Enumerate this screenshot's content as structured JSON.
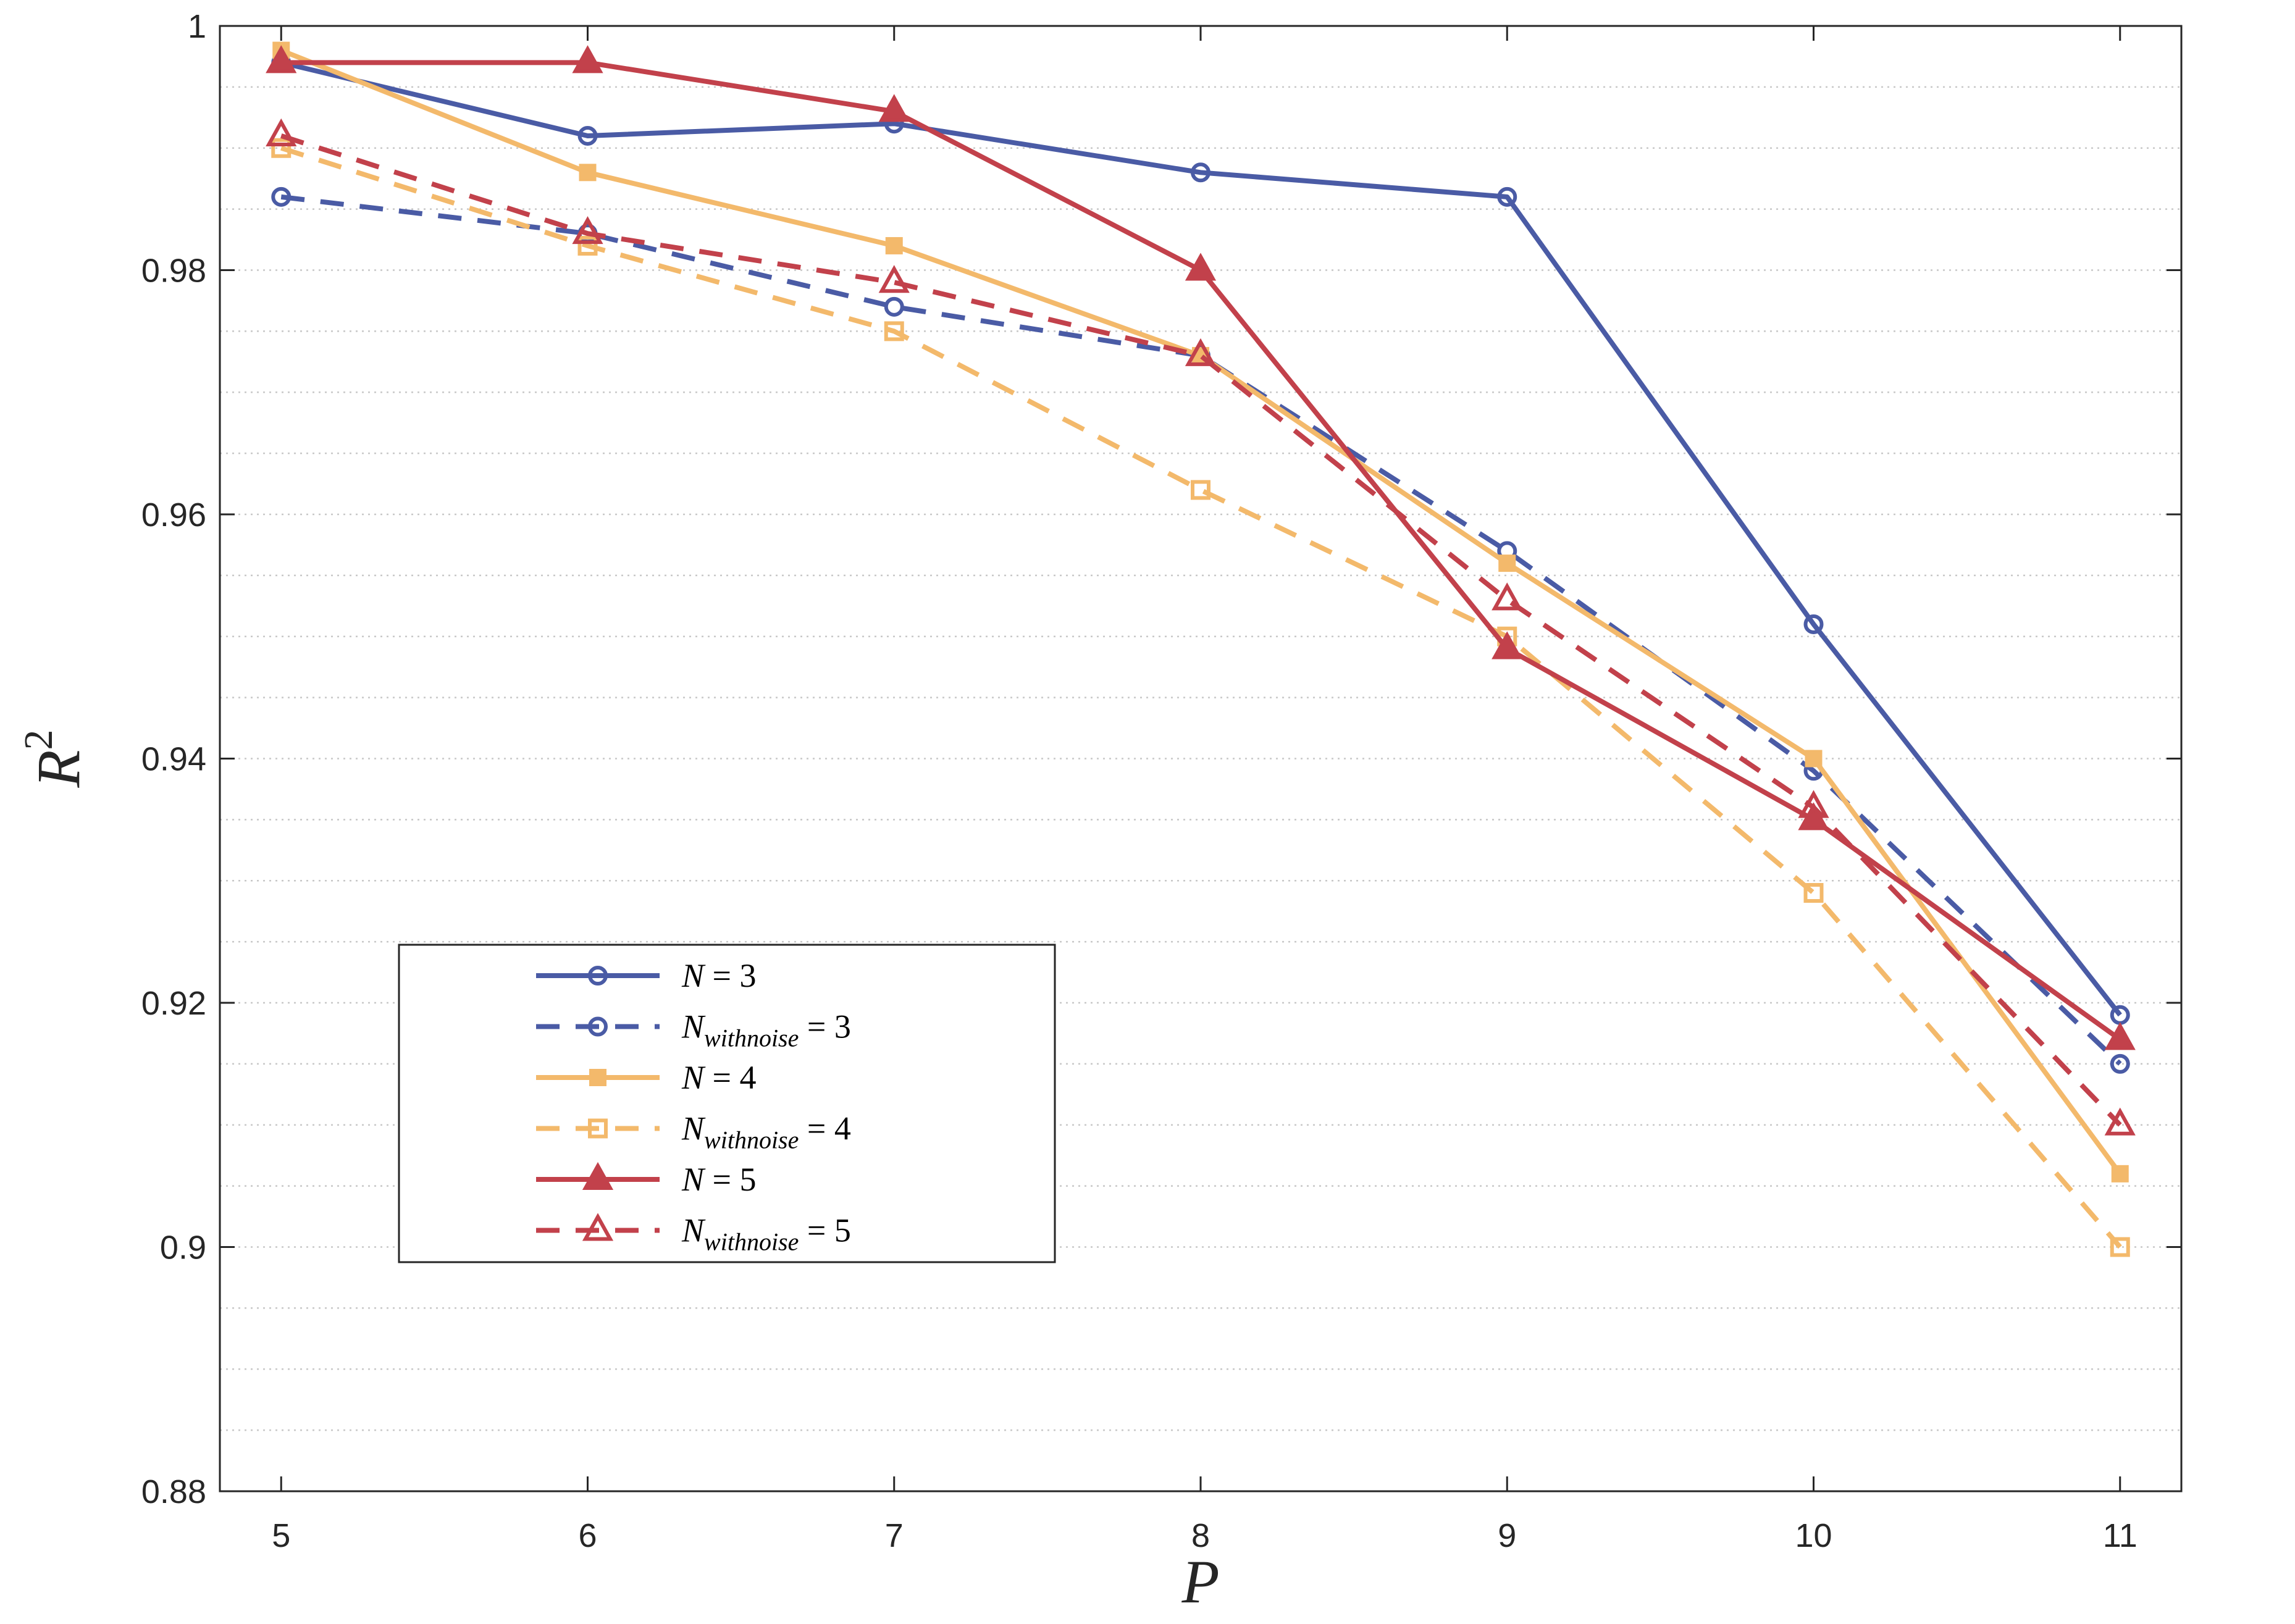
{
  "chart_data": {
    "type": "line",
    "xlabel": "P",
    "ylabel": "R",
    "ylabel_superscript": "2",
    "xlim": [
      4.8,
      11.2
    ],
    "ylim": [
      0.88,
      1.0
    ],
    "x": [
      5,
      6,
      7,
      8,
      9,
      10,
      11
    ],
    "xticks": [
      "5",
      "6",
      "7",
      "8",
      "9",
      "10",
      "11"
    ],
    "yticks": [
      "0.88",
      "0.9",
      "0.92",
      "0.94",
      "0.96",
      "0.98",
      "1"
    ],
    "ytick_values": [
      0.88,
      0.9,
      0.92,
      0.94,
      0.96,
      0.98,
      1.0
    ],
    "grid": "horizontal-minor-dotted",
    "legend_position": "lower-left",
    "series": [
      {
        "name": "N = 3",
        "sub": "",
        "values": [
          0.997,
          0.991,
          0.992,
          0.988,
          0.986,
          0.951,
          0.919
        ],
        "color": "#4a5ba5",
        "dash": false,
        "marker": "circle"
      },
      {
        "name": "N = 3",
        "sub": "withnoise",
        "values": [
          0.986,
          0.983,
          0.977,
          0.973,
          0.957,
          0.939,
          0.915
        ],
        "color": "#4a5ba5",
        "dash": true,
        "marker": "circle"
      },
      {
        "name": "N = 4",
        "sub": "",
        "values": [
          0.998,
          0.988,
          0.982,
          0.973,
          0.956,
          0.94,
          0.906
        ],
        "color": "#f3b96b",
        "dash": false,
        "marker": "square"
      },
      {
        "name": "N = 4",
        "sub": "withnoise",
        "values": [
          0.99,
          0.982,
          0.975,
          0.962,
          0.95,
          0.929,
          0.9
        ],
        "color": "#f3b96b",
        "dash": true,
        "marker": "square"
      },
      {
        "name": "N = 5",
        "sub": "",
        "values": [
          0.997,
          0.997,
          0.993,
          0.98,
          0.949,
          0.935,
          0.917
        ],
        "color": "#c2414b",
        "dash": false,
        "marker": "triangle"
      },
      {
        "name": "N = 5",
        "sub": "withnoise",
        "values": [
          0.991,
          0.983,
          0.979,
          0.973,
          0.953,
          0.936,
          0.91
        ],
        "color": "#c2414b",
        "dash": true,
        "marker": "triangle"
      }
    ],
    "legend": [
      {
        "main": "N",
        "sub": "",
        "eq": " = 3"
      },
      {
        "main": "N",
        "sub": "withnoise",
        "eq": " = 3"
      },
      {
        "main": "N",
        "sub": "",
        "eq": " = 4"
      },
      {
        "main": "N",
        "sub": "withnoise",
        "eq": " = 4"
      },
      {
        "main": "N",
        "sub": "",
        "eq": " = 5"
      },
      {
        "main": "N",
        "sub": "withnoise",
        "eq": " = 5"
      }
    ]
  }
}
